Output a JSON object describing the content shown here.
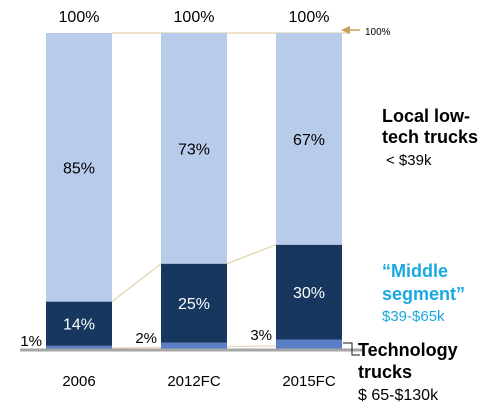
{
  "chart_data": {
    "type": "bar",
    "stacked": true,
    "percent": true,
    "categories": [
      "2006",
      "2012FC",
      "2015FC"
    ],
    "totals": [
      "100%",
      "100%",
      "100%"
    ],
    "series": [
      {
        "key": "tech",
        "values": [
          1,
          2,
          3
        ],
        "labels": [
          "1%",
          "2%",
          "3%"
        ],
        "color": "#5b7fc7"
      },
      {
        "key": "middle",
        "values": [
          14,
          25,
          30
        ],
        "labels": [
          "14%",
          "25%",
          "30%"
        ],
        "color": "#17375e"
      },
      {
        "key": "local",
        "values": [
          85,
          73,
          67
        ],
        "labels": [
          "85%",
          "73%",
          "67%"
        ],
        "color": "#b9cbea"
      }
    ],
    "ylim": [
      0,
      100
    ],
    "grid": false,
    "annotation": "100%",
    "legend": {
      "placement": "right",
      "local": {
        "line1": "Local low-",
        "line2": "tech trucks",
        "price": "< $39k",
        "color": "#000000"
      },
      "middle": {
        "line1": "“Middle",
        "line2": "segment”",
        "price": "$39-$65k",
        "color": "#19a9e0"
      },
      "tech": {
        "line1": "Technology",
        "line2": "trucks",
        "price": "$ 65-$130k",
        "color": "#000000"
      }
    },
    "colors": {
      "connector": "#e8d9ba",
      "axis": "#a6a6a6",
      "arrow": "#c9a25a",
      "label_dark": "#000000",
      "label_light": "#ffffff"
    }
  }
}
